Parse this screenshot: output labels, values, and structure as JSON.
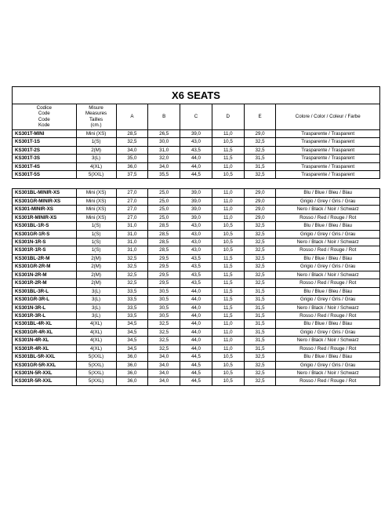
{
  "title": "X6 SEATS",
  "headers": {
    "code": [
      "Codice",
      "Code",
      "Code",
      "Kode"
    ],
    "size": [
      "Misure",
      "Measures",
      "Tailles",
      "(cm.)"
    ],
    "a": "A",
    "b": "B",
    "c": "C",
    "d": "D",
    "e": "E",
    "color": "Colore / Color / Coleur / Farbe"
  },
  "group1": [
    {
      "code": "KS301T-MINI",
      "size": "Mini (XS)",
      "a": "28,5",
      "b": "26,5",
      "c": "39,0",
      "d": "11,0",
      "e": "29,0",
      "color": "Trasparente / Trasparent"
    },
    {
      "code": "KS301T-1S",
      "size": "1(S)",
      "a": "32,5",
      "b": "30,0",
      "c": "43,0",
      "d": "10,5",
      "e": "32,5",
      "color": "Trasparente / Trasparent"
    },
    {
      "code": "KS301T-2S",
      "size": "2(M)",
      "a": "34,0",
      "b": "31,0",
      "c": "43,5",
      "d": "11,5",
      "e": "32,5",
      "color": "Trasparente / Trasparent"
    },
    {
      "code": "KS301T-3S",
      "size": "3(L)",
      "a": "35,0",
      "b": "32,0",
      "c": "44,0",
      "d": "11,5",
      "e": "31,5",
      "color": "Trasparente / Trasparent"
    },
    {
      "code": "KS301T-4S",
      "size": "4(XL)",
      "a": "36,0",
      "b": "34,0",
      "c": "44,0",
      "d": "11,0",
      "e": "31,5",
      "color": "Trasparente / Trasparent"
    },
    {
      "code": "KS301T-5S",
      "size": "5(XXL)",
      "a": "37,5",
      "b": "35,5",
      "c": "44,5",
      "d": "10,5",
      "e": "32,5",
      "color": "Trasparente / Trasparent"
    }
  ],
  "group2": [
    {
      "code": "KS301BL-MINIR-XS",
      "size": "Mini (XS)",
      "a": "27,0",
      "b": "25,0",
      "c": "39,0",
      "d": "11,0",
      "e": "29,0",
      "color": "Blu / Blue / Bleu / Blau"
    },
    {
      "code": "KS301GR-MINIR-XS",
      "size": "Mini (XS)",
      "a": "27,0",
      "b": "25,0",
      "c": "39,0",
      "d": "11,0",
      "e": "29,0",
      "color": "Grigio / Grey / Gris / Grau"
    },
    {
      "code": "KS301-MINIR-XS",
      "size": "Mini (XS)",
      "a": "27,0",
      "b": "25,0",
      "c": "39,0",
      "d": "11,0",
      "e": "29,0",
      "color": "Nero / Black / Noir / Schwarz"
    },
    {
      "code": "KS301R-MINIR-XS",
      "size": "Mini (XS)",
      "a": "27,0",
      "b": "25,0",
      "c": "39,0",
      "d": "11,0",
      "e": "29,0",
      "color": "Rosso / Red / Rouge / Rot"
    },
    {
      "code": "KS301BL-1R-S",
      "size": "1(S)",
      "a": "31,0",
      "b": "28,5",
      "c": "43,0",
      "d": "10,5",
      "e": "32,5",
      "color": "Blu / Blue / Bleu / Blau"
    },
    {
      "code": "KS301GR-1R-S",
      "size": "1(S)",
      "a": "31,0",
      "b": "28,5",
      "c": "43,0",
      "d": "10,5",
      "e": "32,5",
      "color": "Grigio / Grey / Gris / Grau"
    },
    {
      "code": "KS301N-1R-S",
      "size": "1(S)",
      "a": "31,0",
      "b": "28,5",
      "c": "43,0",
      "d": "10,5",
      "e": "32,5",
      "color": "Nero / Black / Noir / Schwarz"
    },
    {
      "code": "KS301R-1R-S",
      "size": "1(S)",
      "a": "31,0",
      "b": "28,5",
      "c": "43,0",
      "d": "10,5",
      "e": "32,5",
      "color": "Rosso / Red / Rouge / Rot"
    },
    {
      "code": "KS301BL-2R-M",
      "size": "2(M)",
      "a": "32,5",
      "b": "29,5",
      "c": "43,5",
      "d": "11,5",
      "e": "32,5",
      "color": "Blu / Blue / Bleu / Blau"
    },
    {
      "code": "KS301GR-2R-M",
      "size": "2(M)",
      "a": "32,5",
      "b": "29,5",
      "c": "43,5",
      "d": "11,5",
      "e": "32,5",
      "color": "Grigio / Grey / Gris / Grau"
    },
    {
      "code": "KS301N-2R-M",
      "size": "2(M)",
      "a": "32,5",
      "b": "29,5",
      "c": "43,5",
      "d": "11,5",
      "e": "32,5",
      "color": "Nero / Black / Noir / Schwarz"
    },
    {
      "code": "KS301R-2R-M",
      "size": "2(M)",
      "a": "32,5",
      "b": "29,5",
      "c": "43,5",
      "d": "11,5",
      "e": "32,5",
      "color": "Rosso / Red / Rouge / Rot"
    },
    {
      "code": "KS301BL-3R-L",
      "size": "3(L)",
      "a": "33,5",
      "b": "30,5",
      "c": "44,0",
      "d": "11,5",
      "e": "31,5",
      "color": "Blu / Blue / Bleu / Blau"
    },
    {
      "code": "KS301GR-3R-L",
      "size": "3(L)",
      "a": "33,5",
      "b": "30,5",
      "c": "44,0",
      "d": "11,5",
      "e": "31,5",
      "color": "Grigio / Grey / Gris / Grau"
    },
    {
      "code": "KS301N-3R-L",
      "size": "3(L)",
      "a": "33,5",
      "b": "30,5",
      "c": "44,0",
      "d": "11,5",
      "e": "31,5",
      "color": "Nero / Black / Noir / Schwarz"
    },
    {
      "code": "KS301R-3R-L",
      "size": "3(L)",
      "a": "33,5",
      "b": "30,5",
      "c": "44,0",
      "d": "11,5",
      "e": "31,5",
      "color": "Rosso / Red / Rouge / Rot"
    },
    {
      "code": "KS301BL-4R-XL",
      "size": "4(XL)",
      "a": "34,5",
      "b": "32,5",
      "c": "44,0",
      "d": "11,0",
      "e": "31,5",
      "color": "Blu / Blue / Bleu / Blau"
    },
    {
      "code": "KS301GR-4R-XL",
      "size": "4(XL)",
      "a": "34,5",
      "b": "32,5",
      "c": "44,0",
      "d": "11,0",
      "e": "31,5",
      "color": "Grigio / Grey / Gris / Grau"
    },
    {
      "code": "KS301N-4R-XL",
      "size": "4(XL)",
      "a": "34,5",
      "b": "32,5",
      "c": "44,0",
      "d": "11,0",
      "e": "31,5",
      "color": "Nero / Black / Noir / Schwarz"
    },
    {
      "code": "KS301R-4R-XL",
      "size": "4(XL)",
      "a": "34,5",
      "b": "32,5",
      "c": "44,0",
      "d": "11,0",
      "e": "31,5",
      "color": "Rosso / Red / Rouge / Rot"
    },
    {
      "code": "KS301BL-5R-XXL",
      "size": "5(XXL)",
      "a": "36,0",
      "b": "34,0",
      "c": "44,5",
      "d": "10,5",
      "e": "32,5",
      "color": "Blu / Blue / Bleu / Blau"
    },
    {
      "code": "KS301GR-5R-XXL",
      "size": "5(XXL)",
      "a": "36,0",
      "b": "34,0",
      "c": "44,5",
      "d": "10,5",
      "e": "32,5",
      "color": "Grigio / Grey / Gris / Grau"
    },
    {
      "code": "KS301N-5R-XXL",
      "size": "5(XXL)",
      "a": "36,0",
      "b": "34,0",
      "c": "44,5",
      "d": "10,5",
      "e": "32,5",
      "color": "Nero / Black / Noir / Schwarz"
    },
    {
      "code": "KS301R-5R-XXL",
      "size": "5(XXL)",
      "a": "36,0",
      "b": "34,0",
      "c": "44,5",
      "d": "10,5",
      "e": "32,5",
      "color": "Rosso / Red / Rouge / Rot"
    }
  ]
}
